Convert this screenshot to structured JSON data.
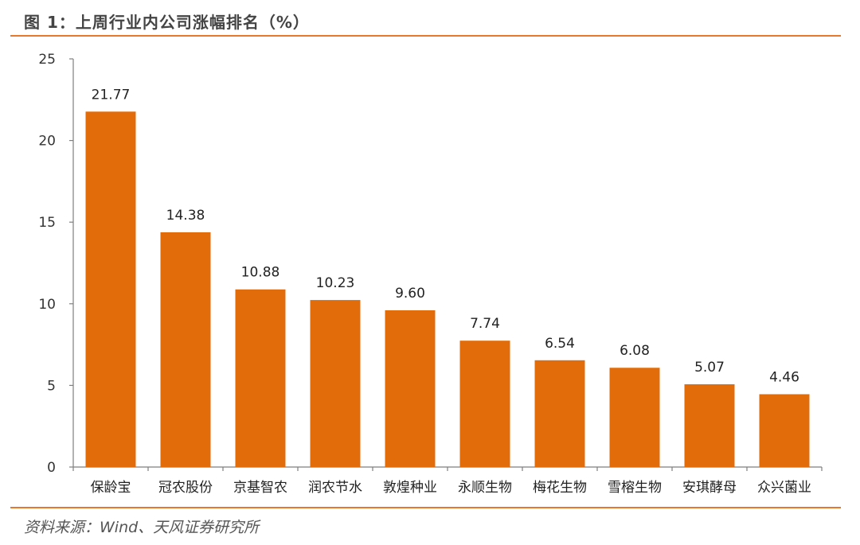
{
  "header": {
    "title": "图 1：上周行业内公司涨幅排名（%）"
  },
  "footer": {
    "source": "资料来源：Wind、天风证券研究所"
  },
  "colors": {
    "bar": "#e36c0a",
    "accent": "#e8792a"
  },
  "chart_data": {
    "type": "bar",
    "categories": [
      "保龄宝",
      "冠农股份",
      "京基智农",
      "润农节水",
      "敦煌种业",
      "永顺生物",
      "梅花生物",
      "雪榕生物",
      "安琪酵母",
      "众兴菌业"
    ],
    "values": [
      21.77,
      14.38,
      10.88,
      10.23,
      9.6,
      7.74,
      6.54,
      6.08,
      5.07,
      4.46
    ],
    "value_labels": [
      "21.77",
      "14.38",
      "10.88",
      "10.23",
      "9.60",
      "7.74",
      "6.54",
      "6.08",
      "5.07",
      "4.46"
    ],
    "ylim": [
      0,
      25
    ],
    "yticks": [
      "0",
      "5",
      "10",
      "15",
      "20",
      "25"
    ],
    "grid": false,
    "legend": "none"
  }
}
